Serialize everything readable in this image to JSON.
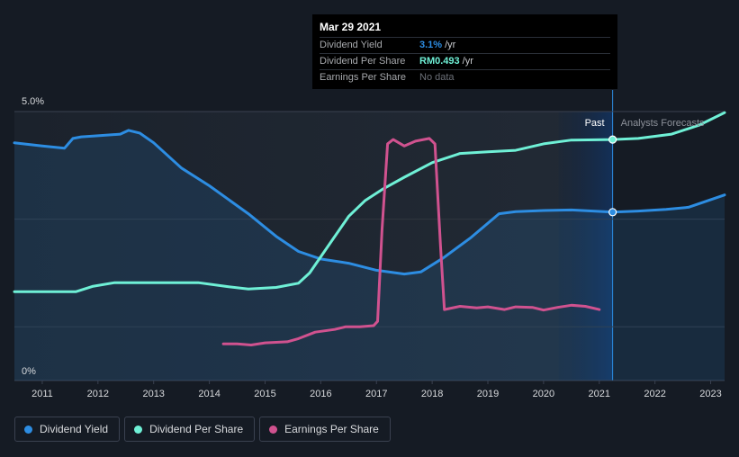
{
  "chart_data": {
    "type": "line",
    "title": "",
    "xlabel": "",
    "ylabel": "",
    "ylim": [
      0,
      5.0
    ],
    "xlim": [
      2010.5,
      2023.25
    ],
    "x_ticks": [
      "2011",
      "2012",
      "2013",
      "2014",
      "2015",
      "2016",
      "2017",
      "2018",
      "2019",
      "2020",
      "2021",
      "2022",
      "2023"
    ],
    "y_tick_labels": {
      "top": "5.0%",
      "bottom": "0%"
    },
    "regions": {
      "past_label": "Past",
      "forecast_label": "Analysts Forecasts",
      "divider_x": 2021.24
    },
    "series": [
      {
        "name": "Dividend Yield",
        "color": "#2d8de2",
        "area": true,
        "points": [
          [
            2010.5,
            4.42
          ],
          [
            2011.0,
            4.36
          ],
          [
            2011.4,
            4.32
          ],
          [
            2011.55,
            4.5
          ],
          [
            2011.7,
            4.53
          ],
          [
            2012.0,
            4.55
          ],
          [
            2012.4,
            4.58
          ],
          [
            2012.55,
            4.65
          ],
          [
            2012.75,
            4.6
          ],
          [
            2013.0,
            4.42
          ],
          [
            2013.5,
            3.95
          ],
          [
            2014.0,
            3.62
          ],
          [
            2014.7,
            3.1
          ],
          [
            2015.2,
            2.68
          ],
          [
            2015.6,
            2.4
          ],
          [
            2016.0,
            2.26
          ],
          [
            2016.5,
            2.18
          ],
          [
            2017.0,
            2.05
          ],
          [
            2017.5,
            1.98
          ],
          [
            2017.8,
            2.02
          ],
          [
            2018.2,
            2.28
          ],
          [
            2018.7,
            2.66
          ],
          [
            2019.2,
            3.1
          ],
          [
            2019.5,
            3.14
          ],
          [
            2020.0,
            3.16
          ],
          [
            2020.5,
            3.17
          ],
          [
            2021.24,
            3.13
          ],
          [
            2021.7,
            3.15
          ],
          [
            2022.2,
            3.18
          ],
          [
            2022.6,
            3.22
          ],
          [
            2023.25,
            3.45
          ]
        ]
      },
      {
        "name": "Dividend Per Share",
        "color": "#6ff0d6",
        "area": false,
        "points": [
          [
            2010.5,
            1.65
          ],
          [
            2011.0,
            1.65
          ],
          [
            2011.6,
            1.65
          ],
          [
            2011.9,
            1.75
          ],
          [
            2012.3,
            1.82
          ],
          [
            2013.0,
            1.82
          ],
          [
            2013.8,
            1.82
          ],
          [
            2014.3,
            1.75
          ],
          [
            2014.7,
            1.7
          ],
          [
            2015.2,
            1.73
          ],
          [
            2015.6,
            1.81
          ],
          [
            2015.8,
            2.0
          ],
          [
            2016.2,
            2.6
          ],
          [
            2016.5,
            3.05
          ],
          [
            2016.8,
            3.35
          ],
          [
            2017.1,
            3.55
          ],
          [
            2017.5,
            3.78
          ],
          [
            2018.0,
            4.05
          ],
          [
            2018.5,
            4.22
          ],
          [
            2019.0,
            4.25
          ],
          [
            2019.5,
            4.28
          ],
          [
            2020.0,
            4.4
          ],
          [
            2020.5,
            4.47
          ],
          [
            2021.24,
            4.48
          ],
          [
            2021.7,
            4.5
          ],
          [
            2022.3,
            4.58
          ],
          [
            2022.8,
            4.75
          ],
          [
            2023.25,
            4.98
          ]
        ]
      },
      {
        "name": "Earnings Per Share",
        "color": "#d0528f",
        "area": false,
        "points": [
          [
            2014.25,
            0.68
          ],
          [
            2014.5,
            0.68
          ],
          [
            2014.75,
            0.66
          ],
          [
            2015.0,
            0.7
          ],
          [
            2015.4,
            0.72
          ],
          [
            2015.6,
            0.78
          ],
          [
            2015.9,
            0.9
          ],
          [
            2016.25,
            0.95
          ],
          [
            2016.45,
            1.0
          ],
          [
            2016.7,
            1.0
          ],
          [
            2016.95,
            1.02
          ],
          [
            2017.02,
            1.1
          ],
          [
            2017.1,
            2.8
          ],
          [
            2017.2,
            4.4
          ],
          [
            2017.3,
            4.48
          ],
          [
            2017.5,
            4.36
          ],
          [
            2017.7,
            4.45
          ],
          [
            2017.95,
            4.5
          ],
          [
            2018.05,
            4.4
          ],
          [
            2018.15,
            2.5
          ],
          [
            2018.22,
            1.32
          ],
          [
            2018.5,
            1.38
          ],
          [
            2018.8,
            1.35
          ],
          [
            2019.0,
            1.37
          ],
          [
            2019.3,
            1.32
          ],
          [
            2019.5,
            1.37
          ],
          [
            2019.8,
            1.36
          ],
          [
            2020.0,
            1.31
          ],
          [
            2020.25,
            1.36
          ],
          [
            2020.5,
            1.4
          ],
          [
            2020.75,
            1.38
          ],
          [
            2021.0,
            1.32
          ]
        ]
      }
    ]
  },
  "tooltip": {
    "date": "Mar 29 2021",
    "rows": [
      {
        "label": "Dividend Yield",
        "value": "3.1%",
        "unit": "/yr"
      },
      {
        "label": "Dividend Per Share",
        "value": "RM0.493",
        "unit": "/yr"
      },
      {
        "label": "Earnings Per Share",
        "value": "No data",
        "unit": ""
      }
    ]
  },
  "legend": [
    {
      "label": "Dividend Yield",
      "color": "#2d8de2"
    },
    {
      "label": "Dividend Per Share",
      "color": "#6ff0d6"
    },
    {
      "label": "Earnings Per Share",
      "color": "#d0528f"
    }
  ]
}
